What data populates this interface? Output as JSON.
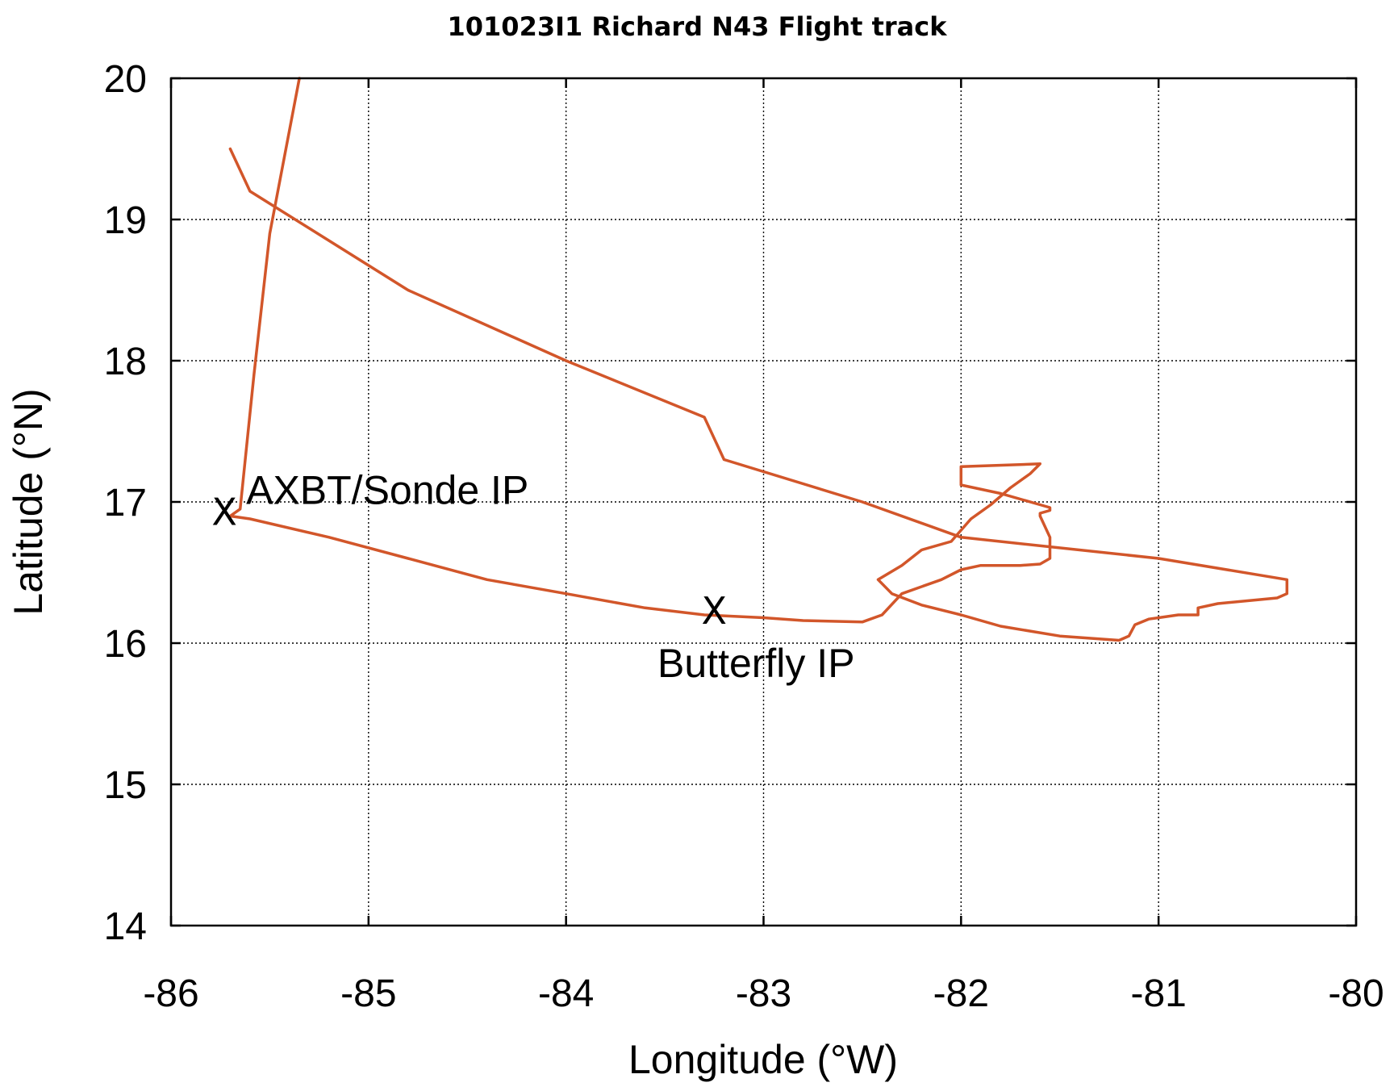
{
  "chart_data": {
    "type": "line",
    "title": "101023I1 Richard N43 Flight track",
    "xlabel": "Longitude (°W)",
    "ylabel": "Latitude (°N)",
    "xlim": [
      -86,
      -80
    ],
    "ylim": [
      14,
      20
    ],
    "xticks": [
      "-86",
      "-85",
      "-84",
      "-83",
      "-82",
      "-81",
      "-80"
    ],
    "yticks": [
      "14",
      "15",
      "16",
      "17",
      "18",
      "19",
      "20"
    ],
    "grid": true,
    "line_color": "#d2562a",
    "series": [
      {
        "x": [
          -85.35,
          -85.5,
          -85.58,
          -85.65,
          -85.7,
          -85.6,
          -85.2,
          -84.8,
          -84.4,
          -84.0,
          -83.6,
          -83.3,
          -83.0,
          -82.8,
          -82.5,
          -82.4,
          -82.3,
          -82.1,
          -82.0,
          -81.9,
          -81.8,
          -81.7,
          -81.6,
          -81.55,
          -81.55,
          -81.6,
          -81.6,
          -81.55,
          -81.55,
          -81.6,
          -81.7,
          -81.8,
          -82.0,
          -82.0,
          -81.6,
          -81.65,
          -81.75,
          -81.85,
          -81.95,
          -82.05,
          -82.2,
          -82.3,
          -82.42,
          -82.35,
          -82.2,
          -82.0,
          -81.8,
          -81.5,
          -81.2,
          -81.15,
          -81.12,
          -81.05,
          -81.0,
          -80.9,
          -80.8,
          -80.8,
          -80.7,
          -80.55,
          -80.4,
          -80.35,
          -80.35,
          -81.0,
          -82.0,
          -82.5,
          -83.2,
          -83.3,
          -84.0,
          -84.8,
          -85.6,
          -85.7
        ],
        "y": [
          20.0,
          18.9,
          17.9,
          16.95,
          16.9,
          16.88,
          16.75,
          16.6,
          16.45,
          16.35,
          16.25,
          16.2,
          16.18,
          16.16,
          16.15,
          16.2,
          16.35,
          16.45,
          16.52,
          16.55,
          16.55,
          16.55,
          16.56,
          16.6,
          16.75,
          16.9,
          16.92,
          16.94,
          16.96,
          16.98,
          17.02,
          17.06,
          17.12,
          17.25,
          17.27,
          17.2,
          17.1,
          16.98,
          16.88,
          16.72,
          16.66,
          16.55,
          16.45,
          16.35,
          16.27,
          16.2,
          16.12,
          16.05,
          16.02,
          16.05,
          16.13,
          16.17,
          16.18,
          16.2,
          16.2,
          16.25,
          16.28,
          16.3,
          16.32,
          16.35,
          16.45,
          16.6,
          16.75,
          17.0,
          17.3,
          17.6,
          18.0,
          18.5,
          19.2,
          19.5
        ],
        "segments_note": ""
      }
    ],
    "annotations": [
      {
        "label": "AXBT/Sonde IP",
        "x": -85.73,
        "y": 16.93
      },
      {
        "label": "Butterfly IP",
        "x": -83.25,
        "y": 16.23
      }
    ]
  },
  "ui": {
    "marker_glyph": "X"
  }
}
